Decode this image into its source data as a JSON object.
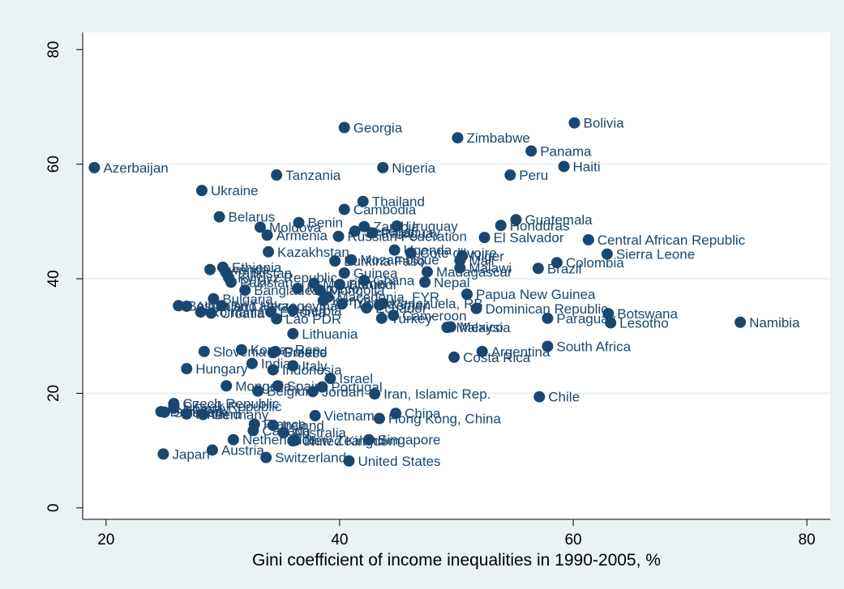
{
  "chart_data": {
    "type": "scatter",
    "title": "",
    "xlabel": "Gini coefficient of income inequalities in 1990-2005, %",
    "ylabel": "",
    "xlim": [
      18,
      82
    ],
    "ylim": [
      -2,
      83
    ],
    "xticks": [
      20,
      40,
      60,
      80
    ],
    "yticks": [
      0,
      20,
      40,
      60,
      80
    ],
    "grid": "horizontal",
    "legend": "none",
    "colors": {
      "marker": "#1a476f",
      "label": "#1a476f",
      "plot_bg": "#ffffff",
      "outer_bg": "#eaf2f3",
      "grid": "#eaf2f3"
    },
    "points": [
      {
        "label": "Azerbaijan",
        "x": 19.0,
        "y": 59.4
      },
      {
        "label": "Georgia",
        "x": 40.4,
        "y": 66.4
      },
      {
        "label": "Bolivia",
        "x": 60.1,
        "y": 67.2
      },
      {
        "label": "Zimbabwe",
        "x": 50.1,
        "y": 64.6
      },
      {
        "label": "Panama",
        "x": 56.4,
        "y": 62.3
      },
      {
        "label": "Haiti",
        "x": 59.2,
        "y": 59.6
      },
      {
        "label": "Nigeria",
        "x": 43.7,
        "y": 59.4
      },
      {
        "label": "Tanzania",
        "x": 34.6,
        "y": 58.1
      },
      {
        "label": "Peru",
        "x": 54.6,
        "y": 58.1
      },
      {
        "label": "Ukraine",
        "x": 28.2,
        "y": 55.4
      },
      {
        "label": "Thailand",
        "x": 42.0,
        "y": 53.5
      },
      {
        "label": "Cambodia",
        "x": 40.4,
        "y": 52.1
      },
      {
        "label": "Belarus",
        "x": 29.7,
        "y": 50.8
      },
      {
        "label": "Guatemala",
        "x": 55.1,
        "y": 50.3
      },
      {
        "label": "Benin",
        "x": 36.5,
        "y": 49.8
      },
      {
        "label": "Uruguay",
        "x": 44.9,
        "y": 49.2
      },
      {
        "label": "Honduras",
        "x": 53.8,
        "y": 49.3
      },
      {
        "label": "Moldova",
        "x": 33.2,
        "y": 49.0
      },
      {
        "label": "Zambia",
        "x": 42.1,
        "y": 49.1
      },
      {
        "label": "Senegal",
        "x": 41.3,
        "y": 48.3
      },
      {
        "label": "Paraguay",
        "x": 42.8,
        "y": 48.0
      },
      {
        "label": "Russian Federation",
        "x": 39.9,
        "y": 47.4
      },
      {
        "label": "Armenia",
        "x": 33.8,
        "y": 47.6
      },
      {
        "label": "El Salvador",
        "x": 52.4,
        "y": 47.2
      },
      {
        "label": "Central African Republic",
        "x": 61.3,
        "y": 46.8
      },
      {
        "label": "Uganda",
        "x": 44.7,
        "y": 45.0
      },
      {
        "label": "Kazakhstan",
        "x": 33.9,
        "y": 44.7
      },
      {
        "label": "Cote d'Ivoire",
        "x": 46.1,
        "y": 44.5
      },
      {
        "label": "Sierra Leone",
        "x": 62.9,
        "y": 44.3
      },
      {
        "label": "Niger",
        "x": 50.5,
        "y": 44.0
      },
      {
        "label": "Mali",
        "x": 50.3,
        "y": 43.2
      },
      {
        "label": "Mozambique",
        "x": 41.0,
        "y": 43.3
      },
      {
        "label": "Burkina Faso",
        "x": 39.6,
        "y": 43.1
      },
      {
        "label": "Colombia",
        "x": 58.6,
        "y": 42.8
      },
      {
        "label": "Ethiopia",
        "x": 30.0,
        "y": 42.0
      },
      {
        "label": "Rwanda",
        "x": 28.9,
        "y": 41.6
      },
      {
        "label": "Malawi",
        "x": 50.3,
        "y": 41.9
      },
      {
        "label": "Brazil",
        "x": 57.0,
        "y": 41.8
      },
      {
        "label": "Tajikistan",
        "x": 30.3,
        "y": 41.0
      },
      {
        "label": "Madagascar",
        "x": 47.5,
        "y": 41.2
      },
      {
        "label": "Guinea",
        "x": 40.4,
        "y": 41.0
      },
      {
        "label": "Kyrgyz Republic",
        "x": 30.5,
        "y": 40.2
      },
      {
        "label": "Ghana",
        "x": 42.1,
        "y": 39.7
      },
      {
        "label": "Pakistan",
        "x": 30.7,
        "y": 39.4
      },
      {
        "label": "Mauritania",
        "x": 37.8,
        "y": 39.2
      },
      {
        "label": "Burundi",
        "x": 40.0,
        "y": 39.0
      },
      {
        "label": "Nepal",
        "x": 47.3,
        "y": 39.4
      },
      {
        "label": "Bangladesh",
        "x": 31.9,
        "y": 38.0
      },
      {
        "label": "Morocco",
        "x": 36.4,
        "y": 38.3
      },
      {
        "label": "Mongolia",
        "x": 38.3,
        "y": 38.0
      },
      {
        "label": "Papua New Guinea",
        "x": 50.9,
        "y": 37.3
      },
      {
        "label": "Bulgaria",
        "x": 29.2,
        "y": 36.5
      },
      {
        "label": "Macedonia, FYR",
        "x": 39.0,
        "y": 36.8
      },
      {
        "label": "Kenya",
        "x": 38.6,
        "y": 36.2
      },
      {
        "label": "Venezuela, RB",
        "x": 43.7,
        "y": 35.7
      },
      {
        "label": "Bosnia and Herzegovina",
        "x": 26.2,
        "y": 35.3
      },
      {
        "label": "Albania",
        "x": 26.9,
        "y": 35.2
      },
      {
        "label": "Sri Lanka",
        "x": 29.9,
        "y": 35.3
      },
      {
        "label": "Tunisia",
        "x": 40.2,
        "y": 35.6
      },
      {
        "label": "Yemen",
        "x": 43.4,
        "y": 35.4
      },
      {
        "label": "Ecuador",
        "x": 42.3,
        "y": 34.9
      },
      {
        "label": "Dominican Republic",
        "x": 51.7,
        "y": 34.8
      },
      {
        "label": "Estonia",
        "x": 34.1,
        "y": 34.2
      },
      {
        "label": "Serbia",
        "x": 36.0,
        "y": 34.5
      },
      {
        "label": "Botswana",
        "x": 63.0,
        "y": 33.9
      },
      {
        "label": "Romania",
        "x": 28.1,
        "y": 34.2
      },
      {
        "label": "Croatia",
        "x": 29.0,
        "y": 34.0
      },
      {
        "label": "Lao PDR",
        "x": 34.6,
        "y": 33.0
      },
      {
        "label": "Cameroon",
        "x": 44.6,
        "y": 33.6
      },
      {
        "label": "Turkey",
        "x": 43.6,
        "y": 33.1
      },
      {
        "label": "Paraguay",
        "x": 57.8,
        "y": 33.1
      },
      {
        "label": "Lesotho",
        "x": 63.2,
        "y": 32.3
      },
      {
        "label": "Namibia",
        "x": 74.3,
        "y": 32.4
      },
      {
        "label": "Mexico",
        "x": 49.5,
        "y": 31.6
      },
      {
        "label": "Malaysia",
        "x": 49.2,
        "y": 31.5
      },
      {
        "label": "Lithuania",
        "x": 36.0,
        "y": 30.4
      },
      {
        "label": "South Africa",
        "x": 57.8,
        "y": 28.2
      },
      {
        "label": "Slovenia",
        "x": 28.4,
        "y": 27.3
      },
      {
        "label": "Korea, Rep.",
        "x": 31.6,
        "y": 27.6
      },
      {
        "label": "Poland",
        "x": 34.5,
        "y": 27.3
      },
      {
        "label": "Greece",
        "x": 34.3,
        "y": 27.1
      },
      {
        "label": "Argentina",
        "x": 52.2,
        "y": 27.3
      },
      {
        "label": "Costa Rica",
        "x": 49.8,
        "y": 26.3
      },
      {
        "label": "India",
        "x": 32.5,
        "y": 25.2
      },
      {
        "label": "Italy",
        "x": 36.0,
        "y": 24.8
      },
      {
        "label": "Hungary",
        "x": 26.9,
        "y": 24.3
      },
      {
        "label": "Indonesia",
        "x": 34.3,
        "y": 24.1
      },
      {
        "label": "Israel",
        "x": 39.2,
        "y": 22.6
      },
      {
        "label": "Mongolia",
        "x": 30.3,
        "y": 21.3
      },
      {
        "label": "Spain",
        "x": 34.7,
        "y": 21.3
      },
      {
        "label": "Portugal",
        "x": 38.5,
        "y": 21.1
      },
      {
        "label": "Belgium",
        "x": 33.0,
        "y": 20.4
      },
      {
        "label": "Jordan",
        "x": 37.7,
        "y": 20.3
      },
      {
        "label": "Iran, Islamic Rep.",
        "x": 43.0,
        "y": 19.9
      },
      {
        "label": "Chile",
        "x": 57.1,
        "y": 19.4
      },
      {
        "label": "Czech Republic",
        "x": 25.8,
        "y": 18.2
      },
      {
        "label": "Slovak Republic",
        "x": 25.8,
        "y": 17.7
      },
      {
        "label": "Norway",
        "x": 25.8,
        "y": 17.4
      },
      {
        "label": "Denmark",
        "x": 24.7,
        "y": 16.8
      },
      {
        "label": "Sweden",
        "x": 25.0,
        "y": 16.7
      },
      {
        "label": "Finland",
        "x": 26.9,
        "y": 16.4
      },
      {
        "label": "Germany",
        "x": 28.3,
        "y": 16.3
      },
      {
        "label": "China",
        "x": 44.8,
        "y": 16.5
      },
      {
        "label": "Vietnam",
        "x": 37.9,
        "y": 16.1
      },
      {
        "label": "Hong Kong, China",
        "x": 43.4,
        "y": 15.6
      },
      {
        "label": "Ireland",
        "x": 34.3,
        "y": 14.4
      },
      {
        "label": "France",
        "x": 32.7,
        "y": 14.6
      },
      {
        "label": "Canada",
        "x": 32.6,
        "y": 13.5
      },
      {
        "label": "Australia",
        "x": 35.2,
        "y": 13.1
      },
      {
        "label": "Singapore",
        "x": 42.5,
        "y": 11.9
      },
      {
        "label": "Netherlands",
        "x": 30.9,
        "y": 11.9
      },
      {
        "label": "United Kingdom",
        "x": 36.0,
        "y": 11.7
      },
      {
        "label": "New Zealand",
        "x": 36.2,
        "y": 11.8
      },
      {
        "label": "Japan",
        "x": 24.9,
        "y": 9.4
      },
      {
        "label": "Austria",
        "x": 29.1,
        "y": 10.1
      },
      {
        "label": "Switzerland",
        "x": 33.7,
        "y": 8.8
      },
      {
        "label": "United States",
        "x": 40.8,
        "y": 8.2
      }
    ]
  }
}
